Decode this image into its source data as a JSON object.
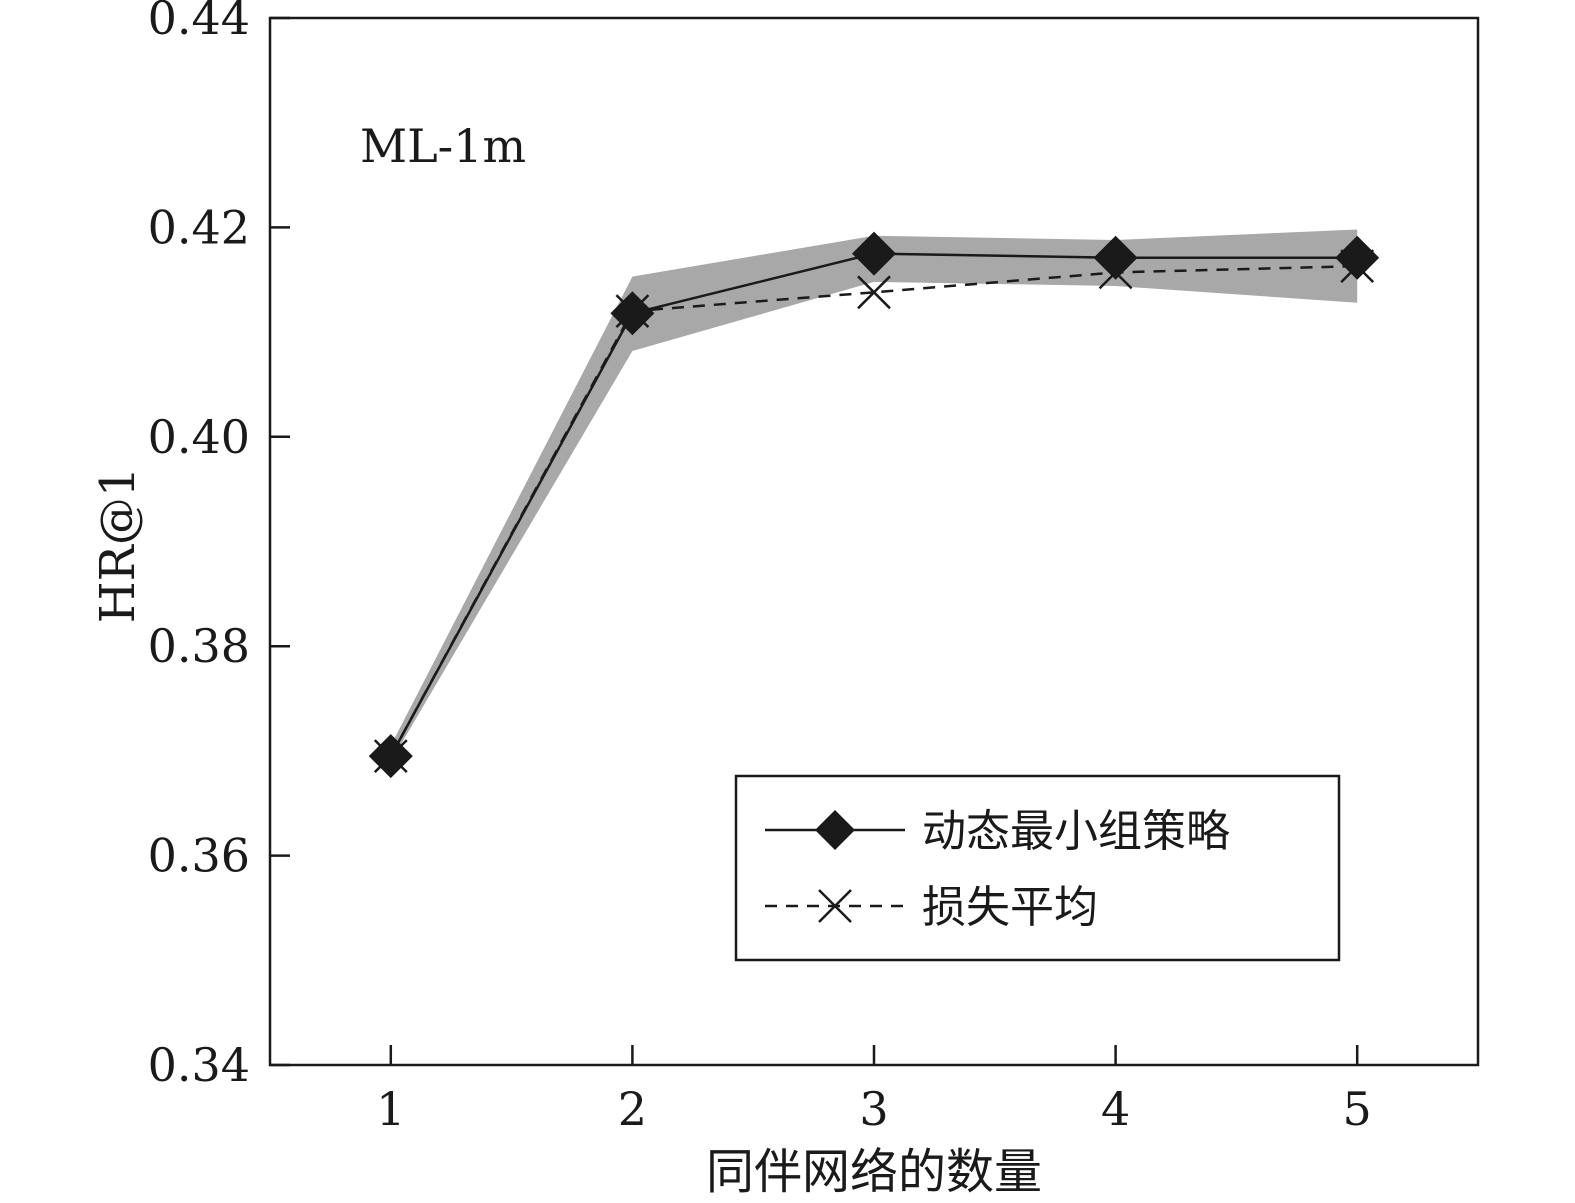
{
  "chart_data": {
    "type": "line",
    "annotation": "ML-1m",
    "xlabel": "同伴网络的数量",
    "ylabel": "HR@1",
    "x": [
      1,
      2,
      3,
      4,
      5
    ],
    "x_ticks": [
      "1",
      "2",
      "3",
      "4",
      "5"
    ],
    "xlim": [
      0.5,
      5.5
    ],
    "ylim": [
      0.34,
      0.44
    ],
    "y_ticks": [
      "0.34",
      "0.36",
      "0.38",
      "0.40",
      "0.42",
      "0.44"
    ],
    "grid": false,
    "legend_position": "lower-right",
    "series": [
      {
        "name": "动态最小组策略",
        "values": [
          0.3695,
          0.4118,
          0.4175,
          0.4171,
          0.4171
        ],
        "marker": "diamond",
        "line_style": "solid",
        "color": "#1a1a1a",
        "band_upper": [
          0.3705,
          0.4153,
          0.4192,
          0.4188,
          0.4198
        ],
        "band_lower": [
          0.369,
          0.4082,
          0.4148,
          0.4144,
          0.4128
        ],
        "band_color": "#a8a8a8"
      },
      {
        "name": "损失平均",
        "values": [
          0.3695,
          0.412,
          0.4138,
          0.4157,
          0.4163
        ],
        "marker": "x",
        "line_style": "dashed",
        "color": "#1a1a1a"
      }
    ]
  }
}
